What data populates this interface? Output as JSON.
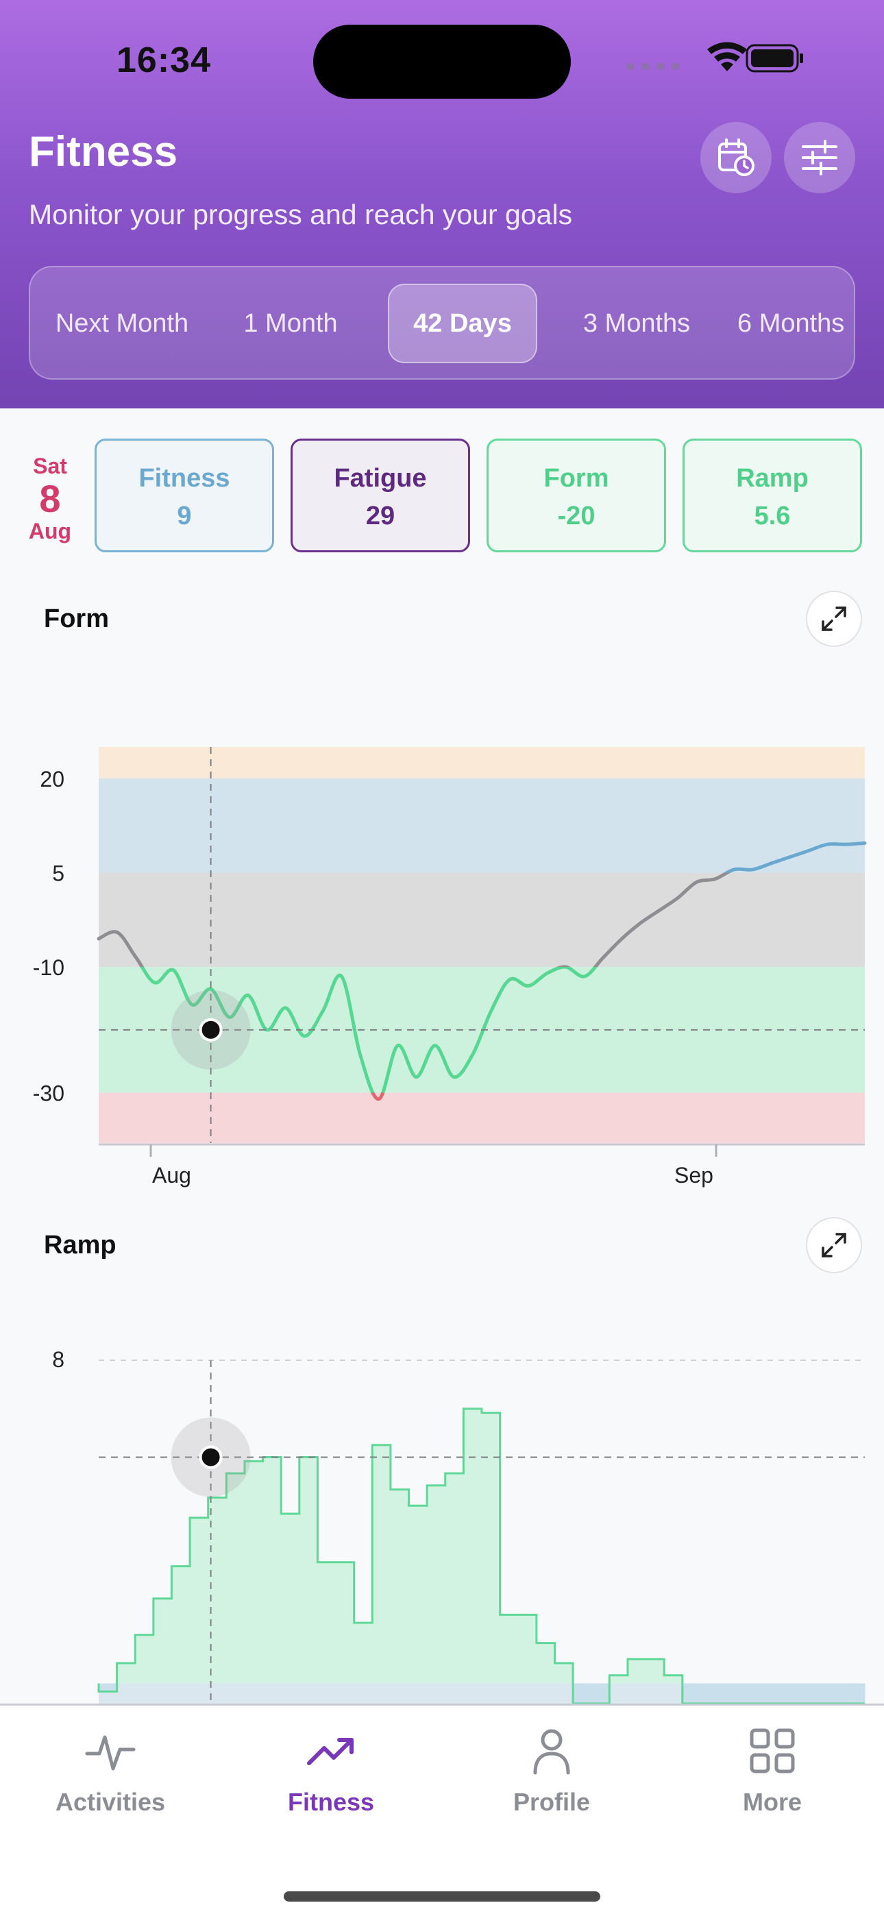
{
  "status_bar": {
    "time": "16:34"
  },
  "header": {
    "title": "Fitness",
    "subtitle": "Monitor your progress and reach your goals",
    "calendar_icon": "calendar-clock-icon",
    "filter_icon": "sliders-icon",
    "periods": [
      "Next Month",
      "1 Month",
      "42 Days",
      "3 Months",
      "6 Months"
    ],
    "selected_period": "42 Days"
  },
  "selected_date": {
    "weekday": "Sat",
    "day": "8",
    "month": "Aug"
  },
  "metrics": {
    "fitness": {
      "label": "Fitness",
      "value": "9"
    },
    "fatigue": {
      "label": "Fatigue",
      "value": "29"
    },
    "form": {
      "label": "Form",
      "value": "-20"
    },
    "ramp": {
      "label": "Ramp",
      "value": "5.6"
    }
  },
  "colors": {
    "accent": "#7a38b8",
    "fitness": "#6aa8d0",
    "fatigue": "#5e2a80",
    "form_green": "#4fcf8a",
    "date_red": "#d23b6a"
  },
  "form_chart": {
    "title": "Form",
    "y_ticks": [
      "20",
      "5",
      "-10",
      "-30"
    ],
    "x_ticks": [
      "Aug",
      "Sep"
    ]
  },
  "ramp_chart": {
    "title": "Ramp",
    "y_ticks": [
      "8"
    ]
  },
  "chart_data": [
    {
      "type": "line",
      "title": "Form",
      "xlabel": "",
      "ylabel": "",
      "ylim": [
        -38,
        25
      ],
      "x_ticks": [
        "Aug",
        "Sep"
      ],
      "y_ticks": [
        20,
        5,
        -10,
        -30
      ],
      "zones": [
        {
          "from": 20,
          "to": 25,
          "color": "#fbe9d8"
        },
        {
          "from": 5,
          "to": 20,
          "color": "#d3e3ee"
        },
        {
          "from": -10,
          "to": 5,
          "color": "#dcdcdc"
        },
        {
          "from": -30,
          "to": -10,
          "color": "#ccf1dd"
        },
        {
          "from": -38,
          "to": -30,
          "color": "#f7d6d9"
        }
      ],
      "selected_value": -20,
      "x": [
        0,
        1,
        2,
        3,
        4,
        5,
        6,
        7,
        8,
        9,
        10,
        11,
        12,
        13,
        14,
        15,
        16,
        17,
        18,
        19,
        20,
        21,
        22,
        23,
        24,
        25,
        26,
        27,
        28,
        29,
        30,
        31,
        32,
        33,
        34,
        35,
        36,
        37,
        38,
        39,
        40,
        41
      ],
      "values": [
        -5.5,
        -4.5,
        -8.5,
        -12.5,
        -10.5,
        -16,
        -13.5,
        -18,
        -14.5,
        -20,
        -16.5,
        -21,
        -17,
        -11.5,
        -24,
        -31,
        -22.5,
        -27.5,
        -22.5,
        -27.5,
        -24,
        -17,
        -12,
        -13,
        -11,
        -10,
        -11.5,
        -8.5,
        -5.5,
        -3,
        -1,
        1,
        3.5,
        4,
        5.5,
        5.5,
        6.5,
        7.5,
        8.5,
        9.5,
        9.5,
        9.7
      ]
    },
    {
      "type": "area",
      "title": "Ramp",
      "xlabel": "",
      "ylabel": "",
      "ylim": [
        -0.5,
        8
      ],
      "y_ticks": [
        8
      ],
      "selected_value": 5.6,
      "x": [
        0,
        1,
        2,
        3,
        4,
        5,
        6,
        7,
        8,
        9,
        10,
        11,
        12,
        13,
        14,
        15,
        16,
        17,
        18,
        19,
        20,
        21,
        22,
        23,
        24,
        25,
        26,
        27,
        28,
        29,
        30,
        31,
        32,
        33,
        34,
        35,
        36,
        37,
        38,
        39,
        40,
        41
      ],
      "values": [
        -0.2,
        0.5,
        1.2,
        2.1,
        2.9,
        4.1,
        4.6,
        5.2,
        5.5,
        5.6,
        4.2,
        5.6,
        3.0,
        3.0,
        1.5,
        5.9,
        4.8,
        4.4,
        4.9,
        5.2,
        6.8,
        6.7,
        1.7,
        1.7,
        1.0,
        0.5,
        -0.5,
        -0.5,
        0.2,
        0.6,
        0.6,
        0.2,
        -0.5,
        -0.5,
        -0.5,
        -0.5,
        -0.5,
        -0.5,
        -0.5,
        -0.5,
        -0.5,
        -0.5
      ]
    }
  ],
  "tabs": [
    {
      "label": "Activities",
      "icon": "activity-icon"
    },
    {
      "label": "Fitness",
      "icon": "trending-up-icon"
    },
    {
      "label": "Profile",
      "icon": "profile-icon"
    },
    {
      "label": "More",
      "icon": "grid-icon"
    }
  ],
  "active_tab": "Fitness"
}
